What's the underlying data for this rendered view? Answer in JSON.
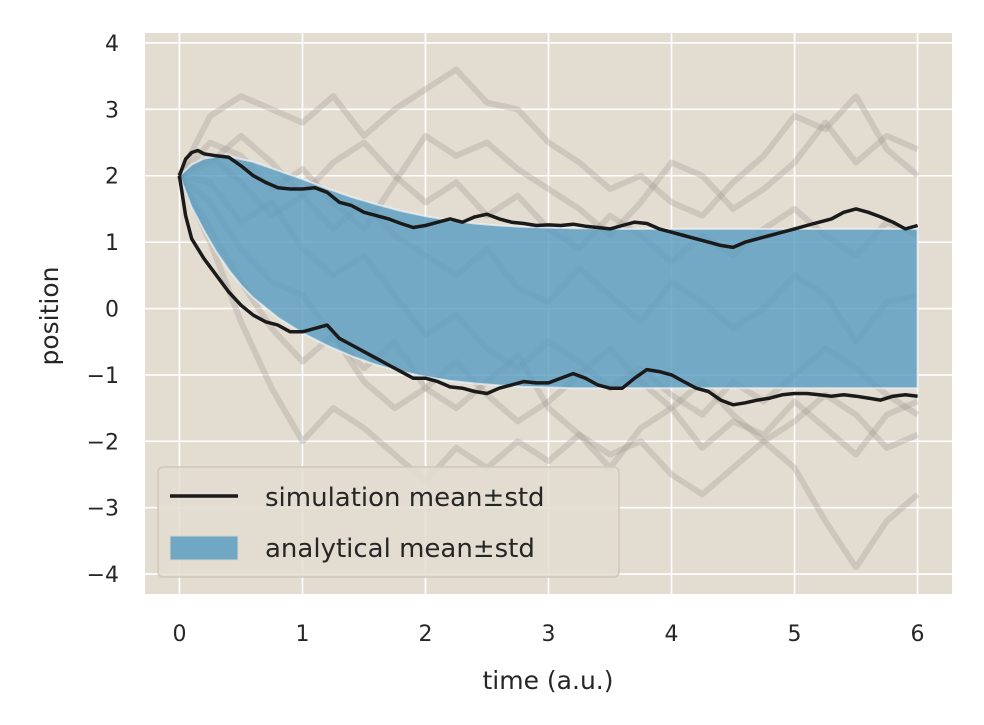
{
  "chart_data": {
    "type": "area",
    "title": "",
    "xlabel": "time (a.u.)",
    "ylabel": "position",
    "xlim": [
      -0.28,
      6.28
    ],
    "ylim": [
      -4.3,
      4.15
    ],
    "xticks": [
      0,
      1,
      2,
      3,
      4,
      5,
      6
    ],
    "yticks": [
      4,
      3,
      2,
      1,
      0,
      -1,
      -2,
      -3,
      -4
    ],
    "xtick_labels": [
      "0",
      "1",
      "2",
      "3",
      "4",
      "5",
      "6"
    ],
    "ytick_labels": [
      "4",
      "3",
      "2",
      "1",
      "0",
      "−1",
      "−2",
      "−3",
      "−4"
    ],
    "grid": true,
    "legend_position": "lower-left",
    "colors": {
      "background": "#e3ddd1",
      "grid": "#ffffff",
      "band": "#5b9dc2",
      "simulation": "#1a1a1a",
      "trajectories": "#9c9690"
    },
    "series": [
      {
        "name": "simulation mean±std",
        "kind": "line",
        "upper": {
          "x": [
            0,
            0.05,
            0.1,
            0.15,
            0.2,
            0.3,
            0.4,
            0.5,
            0.6,
            0.7,
            0.8,
            0.9,
            1.0,
            1.1,
            1.2,
            1.3,
            1.4,
            1.5,
            1.6,
            1.7,
            1.8,
            1.9,
            2.0,
            2.1,
            2.2,
            2.3,
            2.4,
            2.5,
            2.6,
            2.7,
            2.8,
            2.9,
            3.0,
            3.1,
            3.2,
            3.3,
            3.4,
            3.5,
            3.6,
            3.7,
            3.8,
            3.9,
            4.0,
            4.1,
            4.2,
            4.3,
            4.4,
            4.5,
            4.6,
            4.7,
            4.8,
            4.9,
            5.0,
            5.1,
            5.2,
            5.3,
            5.4,
            5.5,
            5.6,
            5.7,
            5.8,
            5.9,
            6.0
          ],
          "y": [
            2.0,
            2.25,
            2.35,
            2.38,
            2.33,
            2.3,
            2.28,
            2.15,
            2.0,
            1.9,
            1.82,
            1.8,
            1.8,
            1.82,
            1.75,
            1.6,
            1.55,
            1.45,
            1.4,
            1.35,
            1.28,
            1.22,
            1.25,
            1.3,
            1.35,
            1.3,
            1.38,
            1.42,
            1.35,
            1.3,
            1.28,
            1.25,
            1.26,
            1.25,
            1.27,
            1.24,
            1.22,
            1.2,
            1.25,
            1.3,
            1.28,
            1.2,
            1.15,
            1.1,
            1.05,
            1.0,
            0.95,
            0.92,
            1.0,
            1.05,
            1.1,
            1.15,
            1.2,
            1.25,
            1.3,
            1.35,
            1.45,
            1.5,
            1.45,
            1.38,
            1.3,
            1.2,
            1.25
          ]
        },
        "lower": {
          "x": [
            0,
            0.05,
            0.1,
            0.15,
            0.2,
            0.3,
            0.4,
            0.5,
            0.6,
            0.7,
            0.8,
            0.9,
            1.0,
            1.1,
            1.2,
            1.3,
            1.4,
            1.5,
            1.6,
            1.7,
            1.8,
            1.9,
            2.0,
            2.1,
            2.2,
            2.3,
            2.4,
            2.5,
            2.6,
            2.7,
            2.8,
            2.9,
            3.0,
            3.1,
            3.2,
            3.3,
            3.4,
            3.5,
            3.6,
            3.7,
            3.8,
            3.9,
            4.0,
            4.1,
            4.2,
            4.3,
            4.4,
            4.5,
            4.6,
            4.7,
            4.8,
            4.9,
            5.0,
            5.1,
            5.2,
            5.3,
            5.4,
            5.5,
            5.6,
            5.7,
            5.8,
            5.9,
            6.0
          ],
          "y": [
            2.0,
            1.4,
            1.05,
            0.9,
            0.75,
            0.5,
            0.25,
            0.05,
            -0.1,
            -0.2,
            -0.25,
            -0.35,
            -0.35,
            -0.3,
            -0.25,
            -0.45,
            -0.55,
            -0.65,
            -0.75,
            -0.85,
            -0.95,
            -1.05,
            -1.05,
            -1.1,
            -1.18,
            -1.2,
            -1.25,
            -1.28,
            -1.2,
            -1.15,
            -1.1,
            -1.12,
            -1.12,
            -1.05,
            -0.98,
            -1.05,
            -1.15,
            -1.2,
            -1.2,
            -1.05,
            -0.92,
            -0.95,
            -1.0,
            -1.1,
            -1.2,
            -1.25,
            -1.38,
            -1.45,
            -1.42,
            -1.38,
            -1.35,
            -1.3,
            -1.28,
            -1.28,
            -1.3,
            -1.32,
            -1.3,
            -1.32,
            -1.35,
            -1.38,
            -1.32,
            -1.3,
            -1.32
          ]
        }
      },
      {
        "name": "analytical mean±std",
        "kind": "band",
        "x": [
          0,
          0.1,
          0.2,
          0.3,
          0.4,
          0.5,
          0.6,
          0.8,
          1.0,
          1.2,
          1.4,
          1.6,
          1.8,
          2.0,
          2.2,
          2.4,
          2.6,
          2.8,
          3.0,
          3.2,
          3.4,
          3.6,
          3.8,
          4.0,
          4.2,
          4.4,
          4.6,
          4.8,
          5.0,
          5.2,
          5.4,
          5.6,
          5.8,
          6.0
        ],
        "upper": [
          2.0,
          2.17,
          2.26,
          2.29,
          2.29,
          2.25,
          2.21,
          2.08,
          1.95,
          1.81,
          1.68,
          1.57,
          1.47,
          1.39,
          1.33,
          1.28,
          1.25,
          1.23,
          1.22,
          1.21,
          1.21,
          1.2,
          1.2,
          1.2,
          1.2,
          1.2,
          1.2,
          1.2,
          1.2,
          1.2,
          1.2,
          1.2,
          1.2,
          1.2
        ],
        "lower": [
          2.0,
          1.52,
          1.17,
          0.85,
          0.58,
          0.35,
          0.16,
          -0.14,
          -0.37,
          -0.56,
          -0.72,
          -0.85,
          -0.95,
          -1.03,
          -1.09,
          -1.13,
          -1.16,
          -1.18,
          -1.19,
          -1.2,
          -1.2,
          -1.2,
          -1.2,
          -1.2,
          -1.2,
          -1.2,
          -1.2,
          -1.2,
          -1.2,
          -1.2,
          -1.2,
          -1.2,
          -1.2,
          -1.2
        ]
      }
    ],
    "trajectories": [
      {
        "x": [
          0,
          0.25,
          0.5,
          0.75,
          1.0,
          1.25,
          1.5,
          1.75,
          2.0,
          2.25,
          2.5,
          2.75,
          3.0,
          3.25,
          3.5,
          3.75,
          4.0,
          4.25,
          4.5,
          4.75,
          5.0,
          5.25,
          5.5,
          5.75,
          6.0
        ],
        "y": [
          2.0,
          2.9,
          3.2,
          3.0,
          2.8,
          3.2,
          2.6,
          3.0,
          3.3,
          3.6,
          3.1,
          3.0,
          2.5,
          2.2,
          1.8,
          2.0,
          1.6,
          1.4,
          1.9,
          2.3,
          2.9,
          2.7,
          3.2,
          2.4,
          2.0
        ]
      },
      {
        "x": [
          0,
          0.25,
          0.5,
          0.75,
          1.0,
          1.25,
          1.5,
          1.75,
          2.0,
          2.25,
          2.5,
          2.75,
          3.0,
          3.25,
          3.5,
          3.75,
          4.0,
          4.25,
          4.5,
          4.75,
          5.0,
          5.25,
          5.5,
          5.75,
          6.0
        ],
        "y": [
          2.0,
          1.0,
          -0.2,
          -1.2,
          -2.0,
          -1.5,
          -1.8,
          -2.2,
          -2.6,
          -2.1,
          -2.4,
          -2.0,
          -2.3,
          -1.9,
          -2.2,
          -2.0,
          -2.5,
          -2.8,
          -2.4,
          -2.0,
          -2.4,
          -3.2,
          -3.9,
          -3.2,
          -2.8
        ]
      },
      {
        "x": [
          0,
          0.25,
          0.5,
          0.75,
          1.0,
          1.25,
          1.5,
          1.75,
          2.0,
          2.25,
          2.5,
          2.75,
          3.0,
          3.25,
          3.5,
          3.75,
          4.0,
          4.25,
          4.5,
          4.75,
          5.0,
          5.25,
          5.5,
          5.75,
          6.0
        ],
        "y": [
          2.0,
          1.6,
          0.9,
          0.4,
          0.2,
          -0.4,
          -0.9,
          -0.5,
          -1.2,
          -1.5,
          -1.1,
          -0.7,
          -1.5,
          -1.9,
          -2.4,
          -1.8,
          -1.5,
          -2.1,
          -1.7,
          -1.9,
          -1.4,
          -1.8,
          -2.2,
          -1.6,
          -1.4
        ]
      },
      {
        "x": [
          0,
          0.25,
          0.5,
          0.75,
          1.0,
          1.25,
          1.5,
          1.75,
          2.0,
          2.25,
          2.5,
          2.75,
          3.0,
          3.25,
          3.5,
          3.75,
          4.0,
          4.25,
          4.5,
          4.75,
          5.0,
          5.25,
          5.5,
          5.75,
          6.0
        ],
        "y": [
          2.0,
          2.5,
          2.3,
          1.8,
          2.1,
          1.6,
          1.2,
          1.9,
          2.6,
          2.3,
          2.5,
          2.1,
          1.8,
          1.5,
          1.1,
          1.6,
          2.2,
          2.0,
          1.5,
          1.8,
          2.2,
          2.8,
          2.2,
          2.6,
          2.4
        ]
      },
      {
        "x": [
          0,
          0.25,
          0.5,
          0.75,
          1.0,
          1.25,
          1.5,
          1.75,
          2.0,
          2.25,
          2.5,
          2.75,
          3.0,
          3.25,
          3.5,
          3.75,
          4.0,
          4.25,
          4.5,
          4.75,
          5.0,
          5.25,
          5.5,
          5.75,
          6.0
        ],
        "y": [
          2.0,
          2.2,
          2.6,
          2.2,
          1.7,
          1.2,
          1.6,
          1.1,
          0.8,
          0.5,
          0.9,
          0.3,
          0.1,
          0.6,
          0.2,
          -0.2,
          0.4,
          0.1,
          -0.3,
          0.0,
          0.5,
          0.2,
          -0.5,
          0.1,
          0.2
        ]
      },
      {
        "x": [
          0,
          0.25,
          0.5,
          0.75,
          1.0,
          1.25,
          1.5,
          1.75,
          2.0,
          2.25,
          2.5,
          2.75,
          3.0,
          3.25,
          3.5,
          3.75,
          4.0,
          4.25,
          4.5,
          4.75,
          5.0,
          5.25,
          5.5,
          5.75,
          6.0
        ],
        "y": [
          2.0,
          1.9,
          1.3,
          1.6,
          0.9,
          0.5,
          0.8,
          0.2,
          -0.4,
          -0.1,
          -0.6,
          -0.9,
          -0.5,
          -0.8,
          -1.2,
          -0.9,
          -1.3,
          -1.6,
          -1.1,
          -1.4,
          -1.0,
          -0.6,
          -0.9,
          -1.3,
          -1.6
        ]
      },
      {
        "x": [
          0,
          0.25,
          0.5,
          0.75,
          1.0,
          1.25,
          1.5,
          1.75,
          2.0,
          2.25,
          2.5,
          2.75,
          3.0,
          3.25,
          3.5,
          3.75,
          4.0,
          4.25,
          4.5,
          4.75,
          5.0,
          5.25,
          5.5,
          5.75,
          6.0
        ],
        "y": [
          2.0,
          2.3,
          1.9,
          1.4,
          1.7,
          2.2,
          2.5,
          2.0,
          1.6,
          1.9,
          1.4,
          1.7,
          1.2,
          0.9,
          1.4,
          1.1,
          0.7,
          1.1,
          0.8,
          1.2,
          1.5,
          1.1,
          0.8,
          1.3,
          1.1
        ]
      },
      {
        "x": [
          0,
          0.25,
          0.5,
          0.75,
          1.0,
          1.25,
          1.5,
          1.75,
          2.0,
          2.25,
          2.5,
          2.75,
          3.0,
          3.25,
          3.5,
          3.75,
          4.0,
          4.25,
          4.5,
          4.75,
          5.0,
          5.25,
          5.5,
          5.75,
          6.0
        ],
        "y": [
          2.0,
          1.2,
          0.4,
          -0.3,
          -0.8,
          -0.4,
          -1.1,
          -1.5,
          -1.2,
          -0.8,
          -1.3,
          -1.7,
          -1.4,
          -1.0,
          -0.6,
          -1.1,
          -1.5,
          -1.1,
          -1.6,
          -2.0,
          -1.7,
          -1.3,
          -1.6,
          -2.1,
          -1.9
        ]
      }
    ]
  }
}
